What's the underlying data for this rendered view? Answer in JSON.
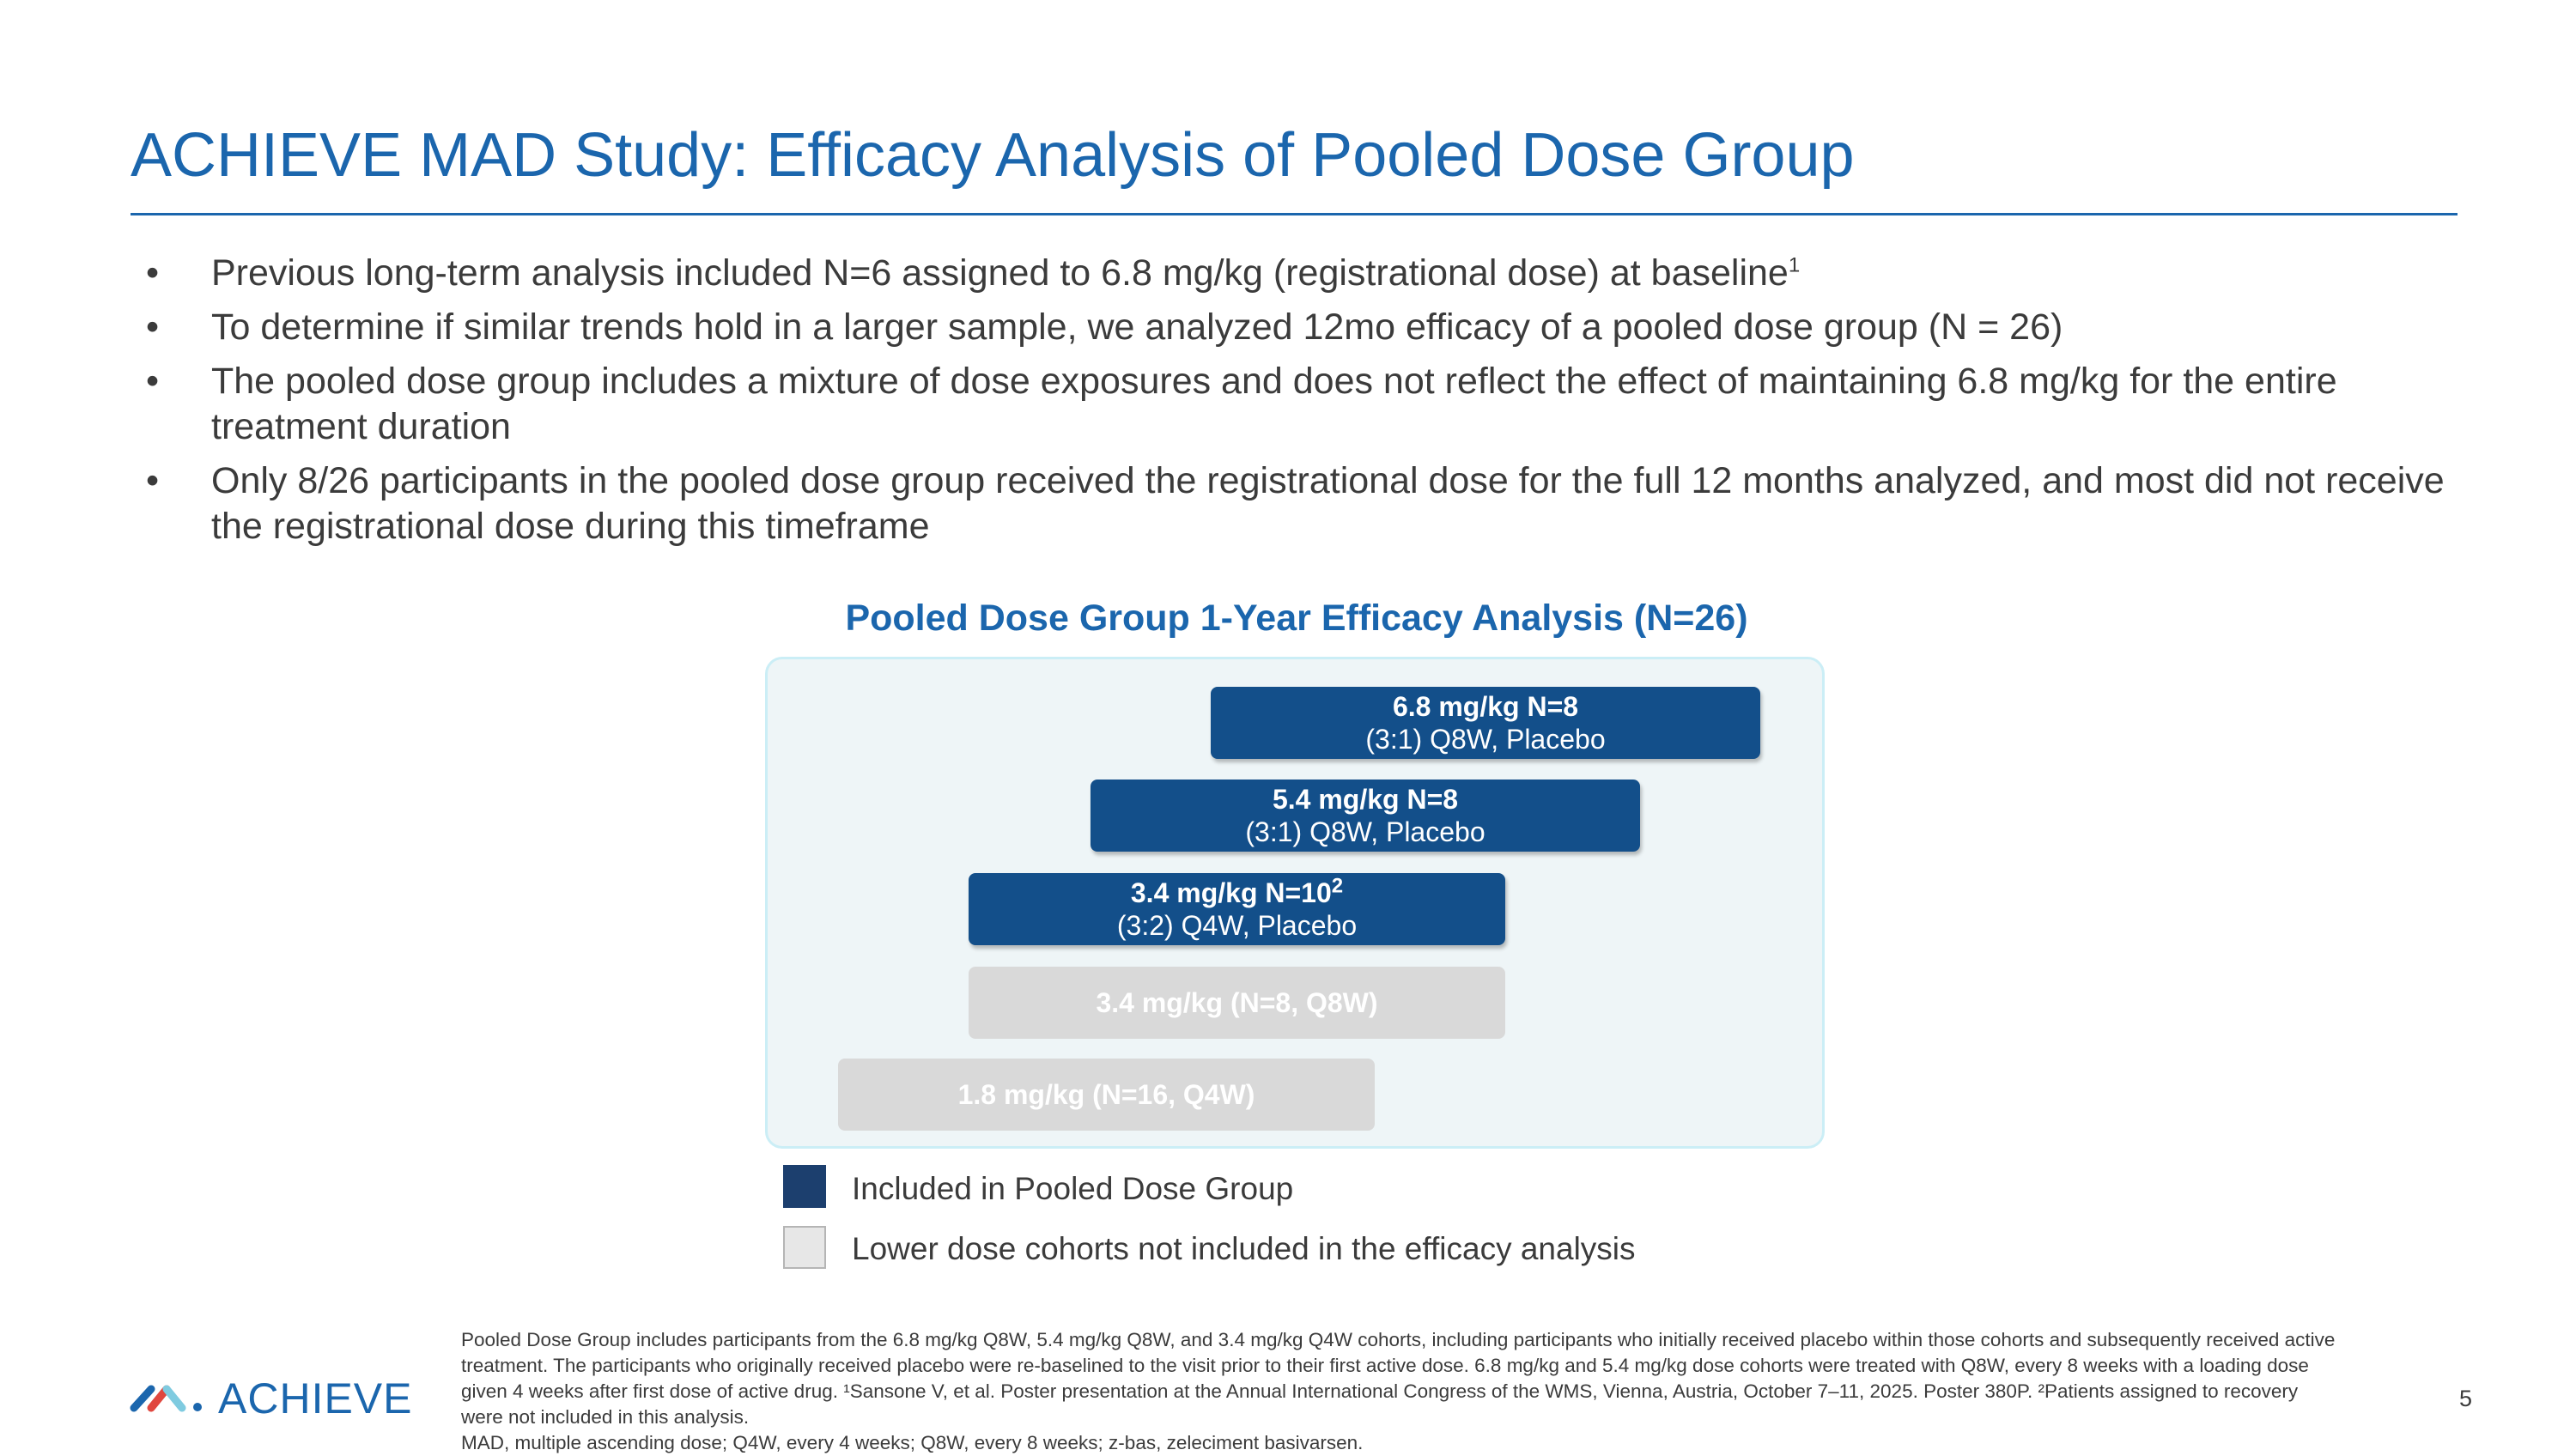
{
  "header": {
    "title": "ACHIEVE MAD Study: Efficacy Analysis of Pooled Dose Group"
  },
  "bullets": [
    {
      "text": "Previous long-term analysis included N=6 assigned to 6.8 mg/kg (registrational dose) at baseline",
      "sup": "1"
    },
    {
      "text": "To determine if similar trends hold in a larger sample, we analyzed 12mo efficacy of a pooled dose group (N = 26)",
      "sup": ""
    },
    {
      "text": "The pooled dose group includes a mixture of dose exposures and does not reflect the effect of maintaining 6.8 mg/kg for the entire treatment duration",
      "sup": ""
    },
    {
      "text": "Only 8/26 participants in the pooled dose group received the registrational dose for the full 12 months analyzed, and most did not receive the registrational dose during this timeframe",
      "sup": ""
    }
  ],
  "bullet_glyph": "•",
  "diagram": {
    "title": "Pooled Dose Group 1-Year Efficacy Analysis (N=26)",
    "cohorts": [
      {
        "line1": "6.8 mg/kg N=8",
        "line1_sup": "",
        "line2": "(3:1) Q8W, Placebo",
        "included": true
      },
      {
        "line1": "5.4 mg/kg N=8",
        "line1_sup": "",
        "line2": "(3:1) Q8W, Placebo",
        "included": true
      },
      {
        "line1": "3.4 mg/kg N=10",
        "line1_sup": "2",
        "line2": "(3:2) Q4W, Placebo",
        "included": true
      },
      {
        "line1": "3.4 mg/kg (N=8, Q8W)",
        "line1_sup": "",
        "line2": "",
        "included": false
      },
      {
        "line1": "1.8 mg/kg  (N=16, Q4W)",
        "line1_sup": "",
        "line2": "",
        "included": false
      }
    ],
    "legend": [
      {
        "label": "Included in Pooled Dose Group",
        "color": "#1c3f6e"
      },
      {
        "label": "Lower dose cohorts not included in the efficacy analysis",
        "color": "#e7e7e7"
      }
    ],
    "colors": {
      "included": "#134f8a",
      "excluded": "#d9d9d9",
      "panel": "#eef5f7"
    }
  },
  "footer": {
    "logo_text": "ACHIEVE",
    "footnote_lines": [
      "Pooled Dose Group includes participants from the 6.8 mg/kg Q8W, 5.4 mg/kg Q8W, and 3.4 mg/kg Q4W cohorts, including participants who initially received placebo within those cohorts and subsequently received active treatment. The participants who originally received placebo were re-baselined to the visit prior to their first active dose. 6.8 mg/kg and 5.4 mg/kg dose cohorts were treated with Q8W, every 8 weeks with a loading dose given 4 weeks after first dose of active drug. ¹Sansone V, et al. Poster presentation at the Annual International Congress of the WMS, Vienna, Austria, October 7–11, 2025. Poster 380P. ²Patients assigned to recovery were not included in this analysis.",
      "MAD, multiple ascending dose; Q4W, every 4 weeks; Q8W, every 8 weeks; z-bas, zeleciment basivarsen."
    ],
    "page_number": "5"
  },
  "brand_color": "#1b66ad"
}
